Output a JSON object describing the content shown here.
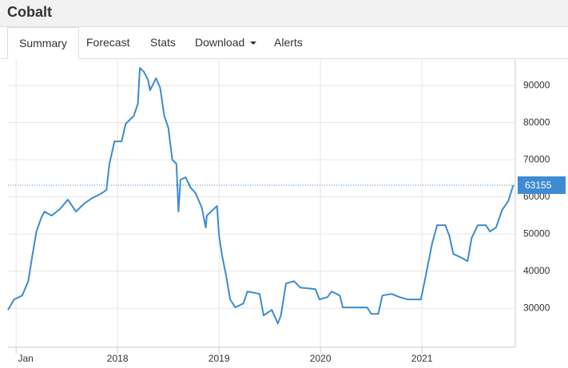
{
  "header": {
    "title": "Cobalt"
  },
  "tabs": [
    "Summary",
    "Forecast",
    "Stats",
    "Download",
    "Alerts"
  ],
  "chart_data": {
    "type": "line",
    "x": [
      2016.92,
      2016.98,
      2017.06,
      2017.12,
      2017.16,
      2017.2,
      2017.25,
      2017.28,
      2017.35,
      2017.43,
      2017.51,
      2017.59,
      2017.67,
      2017.75,
      2017.83,
      2017.89,
      2017.92,
      2017.97,
      2018.04,
      2018.08,
      2018.16,
      2018.2,
      2018.22,
      2018.26,
      2018.3,
      2018.32,
      2018.38,
      2018.42,
      2018.46,
      2018.5,
      2018.54,
      2018.58,
      2018.6,
      2018.62,
      2018.67,
      2018.72,
      2018.77,
      2018.83,
      2018.87,
      2018.88,
      2018.98,
      2019.0,
      2019.03,
      2019.07,
      2019.11,
      2019.16,
      2019.24,
      2019.28,
      2019.4,
      2019.44,
      2019.52,
      2019.58,
      2019.61,
      2019.66,
      2019.74,
      2019.8,
      2019.95,
      2019.99,
      2020.07,
      2020.11,
      2020.19,
      2020.22,
      2020.46,
      2020.5,
      2020.57,
      2020.61,
      2020.7,
      2020.78,
      2020.86,
      2020.99,
      2021.03,
      2021.1,
      2021.15,
      2021.23,
      2021.27,
      2021.31,
      2021.38,
      2021.45,
      2021.49,
      2021.55,
      2021.63,
      2021.67,
      2021.73,
      2021.79,
      2021.85,
      2021.9
    ],
    "series": [
      {
        "color": "#3d8bd0",
        "values": [
          29570,
          32370,
          33440,
          37310,
          44190,
          50650,
          54520,
          56020,
          54950,
          56670,
          59250,
          56020,
          58170,
          59680,
          60750,
          61830,
          68920,
          74950,
          74950,
          79680,
          81830,
          85050,
          94730,
          93660,
          91510,
          88710,
          91940,
          89360,
          81830,
          78600,
          70000,
          68920,
          56020,
          64620,
          65270,
          62470,
          60970,
          57100,
          51720,
          54950,
          57530,
          49570,
          44190,
          38820,
          32370,
          30220,
          31290,
          34520,
          33870,
          28060,
          29570,
          25910,
          28060,
          36670,
          37310,
          35590,
          35160,
          32370,
          33010,
          34520,
          33440,
          30220,
          30220,
          28490,
          28490,
          33440,
          33870,
          33010,
          32370,
          32370,
          37740,
          47420,
          52370,
          52370,
          49570,
          44620,
          43760,
          42690,
          48920,
          52370,
          52370,
          50650,
          51720,
          56450,
          58820,
          63155
        ]
      }
    ],
    "last_value": 63155,
    "xlim": [
      2016.92,
      2021.92
    ],
    "xticks": [
      {
        "value": 2017,
        "label": "Jan"
      },
      2018,
      2019,
      2020,
      2021
    ],
    "ylim": [
      19500,
      96900
    ],
    "yticks": [
      30000,
      40000,
      50000,
      60000,
      70000,
      80000,
      90000
    ],
    "grid": true
  }
}
